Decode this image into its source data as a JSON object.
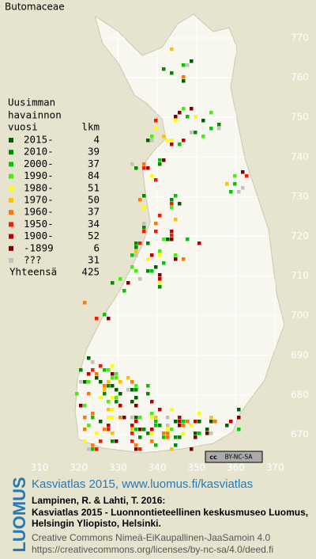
{
  "title": "Butomaceae",
  "legend": {
    "heading": [
      "Uusimman",
      "havainnon",
      "vuosi"
    ],
    "count_heading": "lkm",
    "items": [
      {
        "label": "2015-",
        "count": 4,
        "color": "#006000"
      },
      {
        "label": "2010-",
        "count": 39,
        "color": "#008c00"
      },
      {
        "label": "2000-",
        "count": 37,
        "color": "#00c800"
      },
      {
        "label": "1990-",
        "count": 84,
        "color": "#44f010"
      },
      {
        "label": "1980-",
        "count": 51,
        "color": "#ffff00"
      },
      {
        "label": "1970-",
        "count": 50,
        "color": "#ffc000"
      },
      {
        "label": "1960-",
        "count": 37,
        "color": "#ff7800"
      },
      {
        "label": "1950-",
        "count": 34,
        "color": "#ff1800"
      },
      {
        "label": "1900-",
        "count": 52,
        "color": "#c00000"
      },
      {
        "label": "-1899",
        "count": 6,
        "color": "#800000"
      },
      {
        "label": "???",
        "count": 31,
        "color": "#c0c0c0"
      }
    ],
    "total_label": "Yhteensä",
    "total": 425
  },
  "axes": {
    "y_ticks": [
      770,
      760,
      750,
      740,
      730,
      720,
      710,
      700,
      690,
      680,
      670
    ],
    "x_ticks": [
      310,
      320,
      330,
      340,
      350,
      360,
      370
    ]
  },
  "license_badge": [
    "cc",
    "BY-NC-SA"
  ],
  "footer": {
    "logo": "LUOMUS",
    "link": "Kasviatlas 2015, www.luomus.fi/kasviatlas",
    "citation": [
      "Lampinen, R. & Lahti, T. 2016:",
      "Kasviatlas 2015 - Luonnontieteellinen keskusmuseo Luomus,",
      "Helsingin Yliopisto, Helsinki."
    ],
    "license": [
      "Creative Commons Nimeä-EiKaupallinen-JaaSamoin 4.0",
      "https://creativecommons.org/licenses/by-nc-sa/4.0/deed.fi"
    ]
  }
}
